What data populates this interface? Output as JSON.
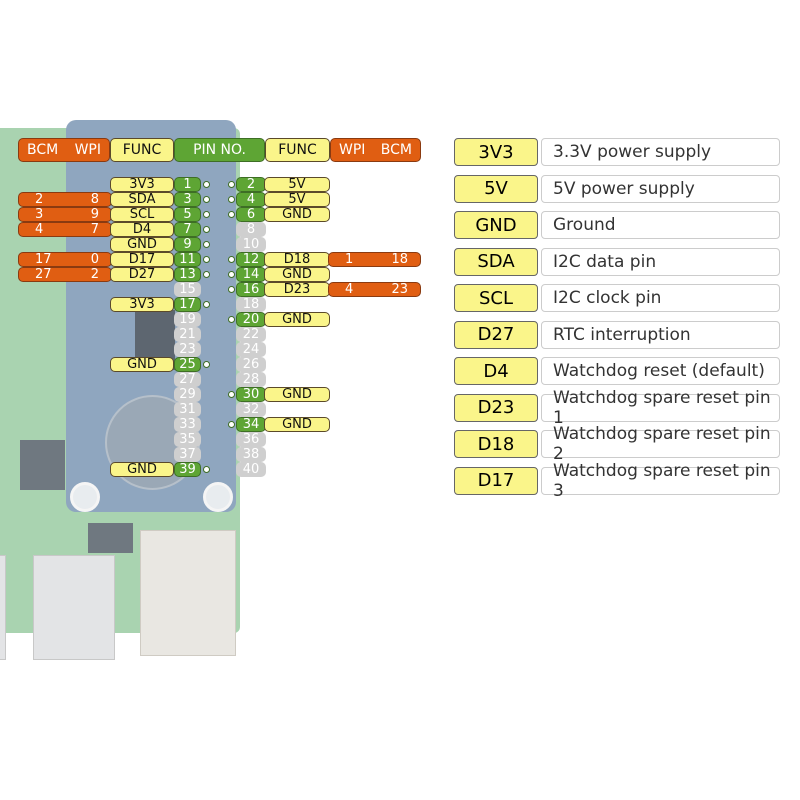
{
  "header": {
    "left_bcm": "BCM",
    "left_wpi": "WPI",
    "left_func": "FUNC",
    "pin_no": "PIN NO.",
    "right_func": "FUNC",
    "right_wpi": "WPI",
    "right_bcm": "BCM"
  },
  "colors": {
    "orange": "#e05e12",
    "yellow": "#faf58a",
    "green": "#5ea534",
    "gray": "#cfcfcf"
  },
  "pins": [
    {
      "l": 1,
      "r": 2,
      "lf": "3V3",
      "rf": "5V"
    },
    {
      "l": 3,
      "r": 4,
      "lf": "SDA",
      "rf": "5V",
      "lbcm": "2",
      "lwpi": "8"
    },
    {
      "l": 5,
      "r": 6,
      "lf": "SCL",
      "rf": "GND",
      "lbcm": "3",
      "lwpi": "9"
    },
    {
      "l": 7,
      "r": 8,
      "lf": "D4",
      "lbcm": "4",
      "lwpi": "7"
    },
    {
      "l": 9,
      "r": 10,
      "lf": "GND"
    },
    {
      "l": 11,
      "r": 12,
      "lf": "D17",
      "rf": "D18",
      "lbcm": "17",
      "lwpi": "0",
      "rwpi": "1",
      "rbcm": "18"
    },
    {
      "l": 13,
      "r": 14,
      "lf": "D27",
      "rf": "GND",
      "lbcm": "27",
      "lwpi": "2"
    },
    {
      "l": 15,
      "r": 16,
      "rf": "D23",
      "rwpi": "4",
      "rbcm": "23"
    },
    {
      "l": 17,
      "r": 18,
      "lf": "3V3"
    },
    {
      "l": 19,
      "r": 20,
      "rf": "GND"
    },
    {
      "l": 21,
      "r": 22
    },
    {
      "l": 23,
      "r": 24
    },
    {
      "l": 25,
      "r": 26,
      "lf": "GND"
    },
    {
      "l": 27,
      "r": 28
    },
    {
      "l": 29,
      "r": 30,
      "rf": "GND"
    },
    {
      "l": 31,
      "r": 32
    },
    {
      "l": 33,
      "r": 34,
      "rf": "GND"
    },
    {
      "l": 35,
      "r": 36
    },
    {
      "l": 37,
      "r": 38
    },
    {
      "l": 39,
      "r": 40,
      "lf": "GND"
    }
  ],
  "legend": [
    {
      "key": "3V3",
      "desc": "3.3V power supply"
    },
    {
      "key": "5V",
      "desc": "5V power supply"
    },
    {
      "key": "GND",
      "desc": "Ground"
    },
    {
      "key": "SDA",
      "desc": "I2C data pin"
    },
    {
      "key": "SCL",
      "desc": "I2C clock pin"
    },
    {
      "key": "D27",
      "desc": "RTC interruption"
    },
    {
      "key": "D4",
      "desc": "Watchdog reset (default)"
    },
    {
      "key": "D23",
      "desc": "Watchdog spare reset pin 1"
    },
    {
      "key": "D18",
      "desc": "Watchdog spare reset pin 2"
    },
    {
      "key": "D17",
      "desc": "Watchdog spare reset pin 3"
    }
  ]
}
